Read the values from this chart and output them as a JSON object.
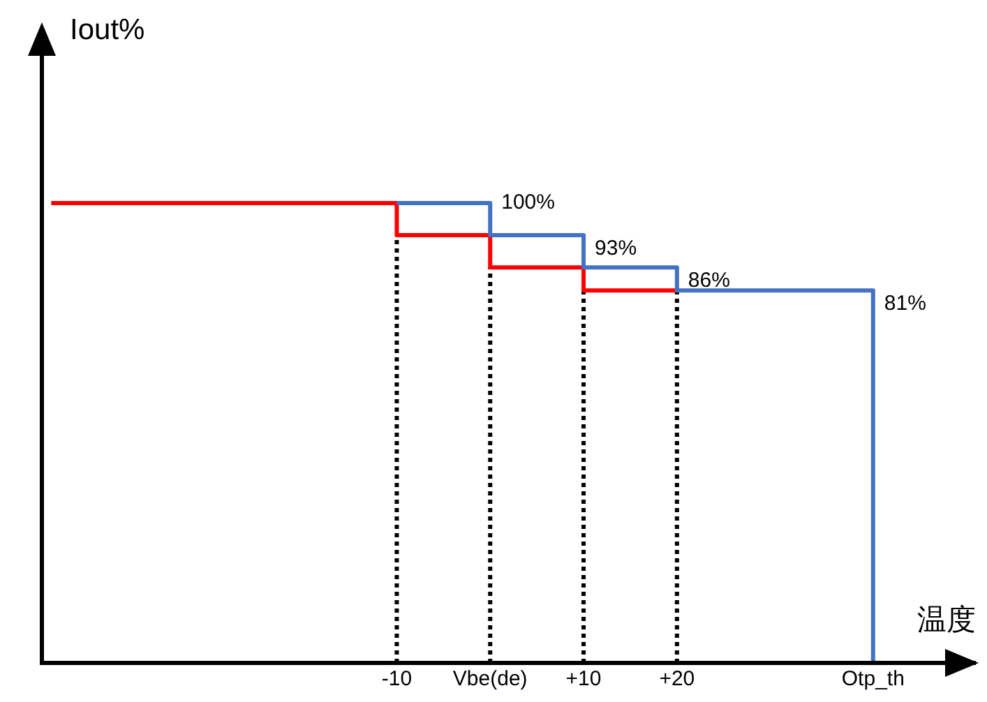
{
  "chart_data": {
    "type": "step",
    "xlabel": "温度",
    "ylabel": "Iout%",
    "xlim": [
      -48,
      52
    ],
    "xticks": [
      {
        "value": -10,
        "label": "-10"
      },
      {
        "value": 0,
        "label": "Vbe(de)"
      },
      {
        "value": 10,
        "label": "+10"
      },
      {
        "value": 20,
        "label": "+20"
      },
      {
        "value": 41,
        "label": "Otp_th"
      }
    ],
    "ylim": [
      0,
      132
    ],
    "tick_labels": "x",
    "grid": false,
    "legend": false,
    "marker": "none",
    "line_style": "solid",
    "series": [
      {
        "color": "#4472c4",
        "x": [
          -10,
          0,
          10,
          20,
          41,
          41
        ],
        "values": [
          100,
          100,
          93,
          86,
          81,
          0
        ],
        "value_labels": [
          null,
          "100%",
          "93%",
          "86%",
          "81%",
          null
        ]
      },
      {
        "color": "#ff0000",
        "x": [
          -47,
          -10,
          0,
          10,
          20
        ],
        "values": [
          100,
          100,
          93,
          86,
          81
        ]
      }
    ],
    "ref_lines": [
      {
        "axis": "x",
        "value": -10,
        "color": "#000000",
        "line_style": "dotted"
      },
      {
        "axis": "x",
        "value": 0,
        "color": "#000000",
        "line_style": "dotted"
      },
      {
        "axis": "x",
        "value": 10,
        "color": "#000000",
        "line_style": "dotted"
      },
      {
        "axis": "x",
        "value": 20,
        "color": "#000000",
        "line_style": "dotted"
      }
    ]
  }
}
